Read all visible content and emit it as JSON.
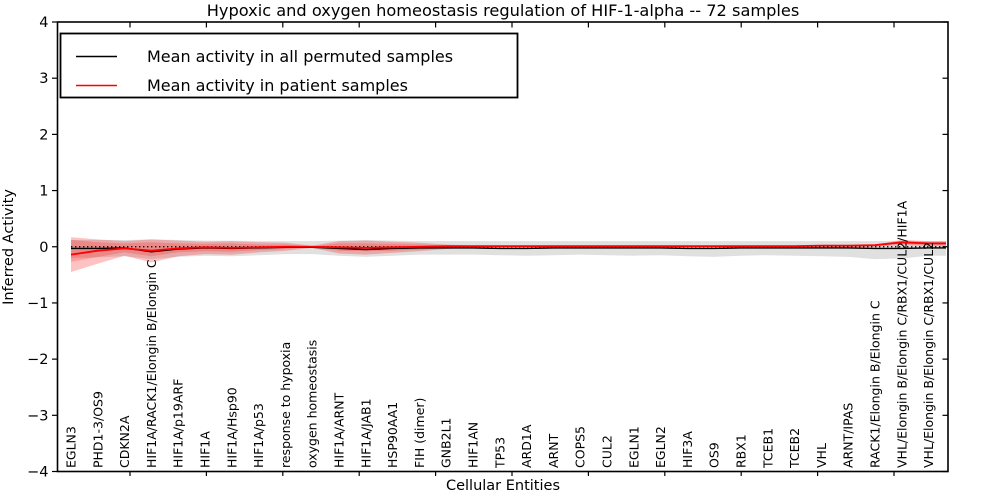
{
  "chart_data": {
    "type": "line",
    "title": "Hypoxic and oxygen homeostasis regulation of HIF-1-alpha -- 72 samples",
    "xlabel": "Cellular Entities",
    "ylabel": "Inferred Activity",
    "ylim": [
      -4,
      4
    ],
    "grid": false,
    "legend_position": "upper left",
    "yticks": [
      4,
      3,
      2,
      1,
      0,
      -1,
      -2,
      -3,
      -4
    ],
    "ytick_labels": [
      "4",
      "3",
      "2",
      "1",
      "0",
      "−1",
      "−2",
      "−3",
      "−4"
    ],
    "categories": [
      "EGLN3",
      "PHD1-3/OS9",
      "CDKN2A",
      "HIF1A/RACK1/Elongin B/Elongin C",
      "HIF1A/p19ARF",
      "HIF1A",
      "HIF1A/Hsp90",
      "HIF1A/p53",
      "response to hypoxia",
      "oxygen homeostasis",
      "HIF1A/ARNT",
      "HIF1A/JAB1",
      "HSP90AA1",
      "FIH (dimer)",
      "GNB2L1",
      "HIF1AN",
      "TP53",
      "ARD1A",
      "ARNT",
      "COPS5",
      "CUL2",
      "EGLN1",
      "EGLN2",
      "HIF3A",
      "OS9",
      "RBX1",
      "TCEB1",
      "TCEB2",
      "VHL",
      "ARNT/IPAS",
      "RACK1/Elongin B/Elongin C",
      "VHL/Elongin B/Elongin C/RBX1/CUL2/HIF1A",
      "VHL/Elongin B/Elongin C/RBX1/CUL2"
    ],
    "legend": [
      {
        "label": "Mean activity in all permuted samples",
        "color": "#000000"
      },
      {
        "label": "Mean activity in patient samples",
        "color": "#ff0000"
      }
    ],
    "series": [
      {
        "name": "Mean activity in all permuted samples",
        "color": "#000000",
        "width": 1.4,
        "values": [
          -0.03,
          -0.03,
          -0.02,
          -0.09,
          -0.04,
          -0.02,
          -0.03,
          -0.02,
          -0.01,
          -0.01,
          -0.03,
          -0.05,
          -0.03,
          -0.02,
          -0.02,
          -0.02,
          -0.03,
          -0.03,
          -0.02,
          -0.02,
          -0.02,
          -0.02,
          -0.02,
          -0.03,
          -0.03,
          -0.02,
          -0.02,
          -0.02,
          -0.02,
          -0.02,
          -0.03,
          -0.03,
          -0.02
        ]
      },
      {
        "name": "Mean activity in patient samples",
        "color": "#ff0000",
        "width": 1.8,
        "values": [
          -0.14,
          -0.07,
          -0.03,
          -0.07,
          -0.03,
          -0.01,
          -0.02,
          -0.01,
          0.0,
          0.0,
          -0.01,
          -0.02,
          -0.01,
          0.0,
          0.01,
          0.01,
          0.01,
          0.01,
          0.01,
          0.01,
          0.01,
          0.01,
          0.01,
          0.01,
          0.01,
          0.01,
          0.01,
          0.01,
          0.02,
          0.02,
          0.03,
          0.08,
          0.06
        ]
      }
    ],
    "bands": [
      {
        "name": "permuted samples range",
        "color": "#000000",
        "opacity": 0.12,
        "upper": [
          0.12,
          0.12,
          0.12,
          0.13,
          0.12,
          0.11,
          0.11,
          0.1,
          0.1,
          0.1,
          0.11,
          0.12,
          0.11,
          0.1,
          0.1,
          0.1,
          0.1,
          0.1,
          0.1,
          0.1,
          0.1,
          0.1,
          0.1,
          0.1,
          0.1,
          0.1,
          0.1,
          0.1,
          0.1,
          0.1,
          0.1,
          0.11,
          0.1
        ],
        "lower": [
          -0.2,
          -0.19,
          -0.17,
          -0.22,
          -0.18,
          -0.16,
          -0.17,
          -0.15,
          -0.13,
          -0.13,
          -0.16,
          -0.18,
          -0.16,
          -0.14,
          -0.14,
          -0.14,
          -0.15,
          -0.16,
          -0.15,
          -0.14,
          -0.15,
          -0.16,
          -0.15,
          -0.17,
          -0.18,
          -0.16,
          -0.15,
          -0.16,
          -0.17,
          -0.18,
          -0.22,
          -0.21,
          -0.16
        ]
      },
      {
        "name": "patient samples outer range",
        "color": "#ff0000",
        "opacity": 0.24,
        "upper": [
          0.17,
          0.13,
          0.1,
          0.13,
          0.11,
          0.09,
          0.1,
          0.08,
          0.07,
          0.02,
          0.1,
          0.11,
          0.09,
          0.07,
          0.04,
          0.02,
          0.02,
          0.02,
          0.02,
          0.02,
          0.02,
          0.02,
          0.02,
          0.02,
          0.02,
          0.02,
          0.02,
          0.02,
          0.03,
          0.03,
          0.04,
          0.12,
          0.1
        ],
        "lower": [
          -0.45,
          -0.3,
          -0.16,
          -0.28,
          -0.17,
          -0.13,
          -0.14,
          -0.1,
          -0.07,
          -0.02,
          -0.12,
          -0.14,
          -0.11,
          -0.08,
          -0.04,
          -0.01,
          -0.01,
          -0.01,
          -0.01,
          -0.01,
          -0.01,
          -0.01,
          -0.01,
          -0.01,
          -0.01,
          -0.01,
          -0.01,
          -0.01,
          -0.01,
          -0.01,
          0.0,
          0.03,
          0.01
        ],
        "start_x_index": 0
      },
      {
        "name": "patient samples inner range",
        "color": "#ff0000",
        "opacity": 0.2,
        "upper": [
          0.12,
          0.08,
          0.06,
          0.08,
          0.06,
          0.05,
          0.06,
          0.04,
          0.04,
          0.01,
          0.06,
          0.06,
          0.05,
          0.04,
          0.02,
          0.01,
          0.01,
          0.01,
          0.01,
          0.01,
          0.01,
          0.01,
          0.01,
          0.01,
          0.01,
          0.01,
          0.01,
          0.01,
          0.02,
          0.02,
          0.03,
          0.1,
          0.08
        ],
        "lower": [
          -0.27,
          -0.18,
          -0.1,
          -0.17,
          -0.1,
          -0.08,
          -0.09,
          -0.06,
          -0.04,
          -0.01,
          -0.07,
          -0.08,
          -0.07,
          -0.05,
          -0.02,
          0.0,
          0.0,
          0.0,
          0.0,
          0.0,
          0.0,
          0.0,
          0.0,
          0.0,
          0.0,
          0.0,
          0.0,
          0.0,
          0.0,
          0.0,
          0.01,
          0.05,
          0.03
        ]
      }
    ],
    "zero_line": {
      "value": 0,
      "style": "dotted",
      "color": "#000000"
    }
  }
}
